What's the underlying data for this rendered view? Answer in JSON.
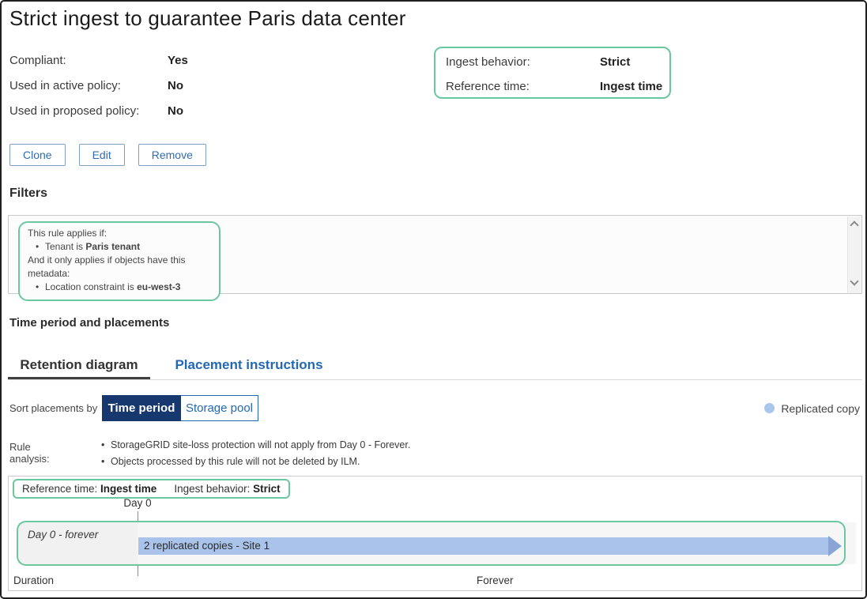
{
  "page": {
    "title": "Strict ingest to guarantee Paris data center"
  },
  "properties": [
    {
      "label": "Compliant:",
      "value": "Yes"
    },
    {
      "label": "Used in active policy:",
      "value": "No"
    },
    {
      "label": "Used in proposed policy:",
      "value": "No"
    }
  ],
  "ingest_box": {
    "rows": [
      {
        "label": "Ingest behavior:",
        "value": "Strict"
      },
      {
        "label": "Reference time:",
        "value": "Ingest time"
      }
    ]
  },
  "actions": {
    "clone": "Clone",
    "edit": "Edit",
    "remove": "Remove"
  },
  "filters": {
    "heading": "Filters",
    "applies_line": "This rule applies if:",
    "tenant_prefix": "Tenant is ",
    "tenant_bold": "Paris tenant",
    "metadata_line": "And it only applies if objects have this metadata:",
    "location_prefix": "Location constraint is ",
    "location_bold": "eu-west-3"
  },
  "placements": {
    "heading": "Time period and placements",
    "tabs": [
      {
        "label": "Retention diagram"
      },
      {
        "label": "Placement instructions"
      }
    ],
    "sort_label": "Sort placements by",
    "sort_options": [
      {
        "label": "Time period"
      },
      {
        "label": "Storage pool"
      }
    ],
    "legend_label": "Replicated copy",
    "rule_analysis_label": "Rule analysis:",
    "rule_analysis": [
      "StorageGRID site-loss protection will not apply from Day 0 - Forever.",
      "Objects processed by this rule will not be deleted by ILM."
    ]
  },
  "diagram": {
    "ref_time_label": "Reference time: ",
    "ref_time_value": "Ingest time",
    "behavior_label": "Ingest behavior: ",
    "behavior_value": "Strict",
    "day0": "Day 0",
    "period_label": "Day 0 - forever",
    "bar_label": "2 replicated copies - Site 1",
    "duration_label": "Duration",
    "forever_label": "Forever"
  },
  "colors": {
    "accent_green": "#6cc7a0",
    "navy_active": "#17386e",
    "link_blue": "#2268b5",
    "button_blue": "#2e6db4",
    "bar_blue": "#a9c3ea",
    "bar_arrow_blue": "#8aa4d6",
    "legend_dot_blue": "#a9c7ed"
  }
}
